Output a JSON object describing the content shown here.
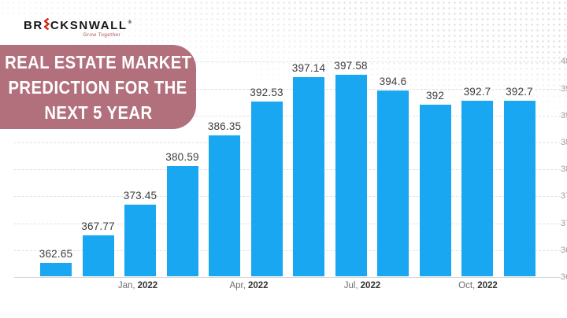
{
  "logo": {
    "part1": "BR",
    "part2": "CKSNWALL",
    "registered": "®",
    "tagline": "Grow Together",
    "icon": "red-zigzag-brick-icon"
  },
  "banner": {
    "line1": "REAL ESTATE MARKET",
    "line2": "PREDICTION FOR THE",
    "line3": "NEXT 5 YEAR"
  },
  "chart_data": {
    "type": "bar",
    "title": "Real Estate Market Prediction for the Next 5 Year",
    "values": [
      362.65,
      367.77,
      373.45,
      380.59,
      386.35,
      392.53,
      397.14,
      397.58,
      394.6,
      392,
      392.7,
      392.7
    ],
    "value_labels": [
      "362.65",
      "367.77",
      "373.45",
      "380.59",
      "386.35",
      "392.53",
      "397.14",
      "397.58",
      "394.6",
      "392",
      "392.7",
      "392.7"
    ],
    "data_labels_shown": true,
    "x_tick_labels": [
      {
        "month": "Jan,",
        "year": "2022"
      },
      {
        "month": "Apr,",
        "year": "2022"
      },
      {
        "month": "Jul,",
        "year": "2022"
      },
      {
        "month": "Oct,",
        "year": "2022"
      }
    ],
    "y_axis": {
      "min": 360,
      "max": 400,
      "step": 5,
      "side": "right",
      "labels_clipped_at_edge": true
    },
    "grid": "horizontal-dashed",
    "legend": "none"
  },
  "colors": {
    "bar": "#18a7f0",
    "banner_bg": "#b2707d",
    "logo_accent_red": "#d4291e",
    "grid": "#e1e1e1",
    "axis_line": "#d6d6d6",
    "value_label": "#3d3d3d",
    "month_label": "#6e6e6e",
    "year_label": "#333333",
    "y_label": "#9b9b9b"
  }
}
